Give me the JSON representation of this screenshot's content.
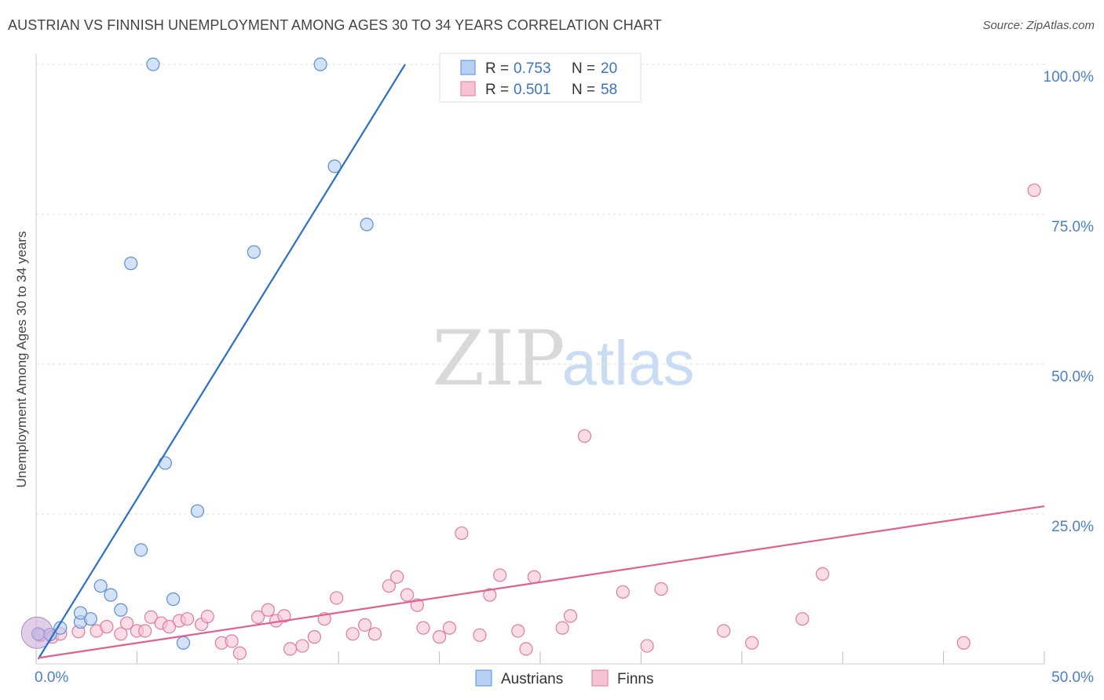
{
  "chart_data": {
    "type": "scatter",
    "title": "AUSTRIAN VS FINNISH UNEMPLOYMENT AMONG AGES 30 TO 34 YEARS CORRELATION CHART",
    "source": "Source: ZipAtlas.com",
    "xlabel": "",
    "ylabel": "Unemployment Among Ages 30 to 34 years",
    "xlim": [
      0,
      50
    ],
    "ylim": [
      0,
      100
    ],
    "x_tick_labels": [
      "0.0%",
      "50.0%"
    ],
    "y_tick_labels": [
      "100.0%",
      "75.0%",
      "50.0%",
      "25.0%"
    ],
    "y_tick_values": [
      100,
      75,
      50,
      25
    ],
    "grid": true,
    "watermark": "ZIPatlas",
    "legend_position": "top-center",
    "legend": [
      {
        "name": "Austrians",
        "r_label": "R = ",
        "r": "0.753",
        "n_label": "N = ",
        "n": "20",
        "color": "#5b8fd6",
        "fill": "#b7cff2"
      },
      {
        "name": "Finns",
        "r_label": "R = ",
        "r": "0.501",
        "n_label": "N = ",
        "n": "58",
        "color": "#e07aa0",
        "fill": "#f7c4d5"
      }
    ],
    "series": [
      {
        "name": "Austrians",
        "color": "#5b8fd6",
        "fill": "#b7cff2",
        "trend_color": "#2a6fc9",
        "trend": {
          "x0": 0.1,
          "y0": 0.8,
          "x1": 18.3,
          "y1": 100
        },
        "points": [
          [
            0.1,
            5.0
          ],
          [
            0.7,
            4.9
          ],
          [
            1.2,
            6.0
          ],
          [
            2.2,
            7.0
          ],
          [
            2.7,
            7.5
          ],
          [
            2.2,
            8.5
          ],
          [
            3.2,
            13.0
          ],
          [
            3.7,
            11.5
          ],
          [
            4.2,
            9.0
          ],
          [
            4.7,
            66.8
          ],
          [
            5.2,
            19.0
          ],
          [
            5.8,
            100.0
          ],
          [
            6.4,
            33.5
          ],
          [
            6.8,
            10.8
          ],
          [
            7.3,
            3.5
          ],
          [
            8.0,
            25.5
          ],
          [
            10.8,
            68.7
          ],
          [
            14.1,
            100.0
          ],
          [
            14.8,
            83.0
          ],
          [
            16.4,
            73.3
          ]
        ]
      },
      {
        "name": "Finns",
        "color": "#e07aa0",
        "fill": "#f7c4d5",
        "trend_color": "#e0608f",
        "trend": {
          "x0": 0.1,
          "y0": 1.0,
          "x1": 50.0,
          "y1": 26.3
        },
        "points": [
          [
            0.8,
            4.5
          ],
          [
            1.2,
            5.0
          ],
          [
            2.1,
            5.4
          ],
          [
            3.0,
            5.5
          ],
          [
            3.5,
            6.2
          ],
          [
            4.2,
            5.0
          ],
          [
            4.5,
            6.8
          ],
          [
            5.0,
            5.5
          ],
          [
            5.4,
            5.5
          ],
          [
            5.7,
            7.8
          ],
          [
            6.2,
            6.8
          ],
          [
            6.6,
            6.2
          ],
          [
            7.1,
            7.2
          ],
          [
            7.5,
            7.5
          ],
          [
            8.2,
            6.6
          ],
          [
            8.5,
            7.9
          ],
          [
            9.2,
            3.5
          ],
          [
            9.7,
            3.8
          ],
          [
            10.1,
            1.8
          ],
          [
            11.0,
            7.8
          ],
          [
            11.5,
            9.0
          ],
          [
            11.9,
            7.2
          ],
          [
            12.3,
            8.0
          ],
          [
            12.6,
            2.5
          ],
          [
            13.2,
            3.0
          ],
          [
            13.8,
            4.5
          ],
          [
            14.3,
            7.5
          ],
          [
            14.9,
            11.0
          ],
          [
            15.7,
            5.0
          ],
          [
            16.3,
            6.5
          ],
          [
            16.8,
            5.0
          ],
          [
            17.5,
            13.0
          ],
          [
            17.9,
            14.5
          ],
          [
            18.4,
            11.5
          ],
          [
            18.9,
            9.8
          ],
          [
            19.2,
            6.0
          ],
          [
            20.0,
            4.5
          ],
          [
            20.5,
            6.0
          ],
          [
            21.1,
            21.8
          ],
          [
            22.0,
            4.8
          ],
          [
            22.5,
            11.5
          ],
          [
            23.0,
            14.8
          ],
          [
            23.9,
            5.5
          ],
          [
            24.3,
            2.5
          ],
          [
            24.7,
            14.5
          ],
          [
            26.1,
            6.0
          ],
          [
            26.5,
            8.0
          ],
          [
            27.2,
            38.0
          ],
          [
            29.1,
            12.0
          ],
          [
            30.3,
            3.0
          ],
          [
            31.0,
            12.5
          ],
          [
            34.1,
            5.5
          ],
          [
            35.5,
            3.5
          ],
          [
            38.0,
            7.5
          ],
          [
            39.0,
            15.0
          ],
          [
            46.0,
            3.5
          ],
          [
            49.5,
            79.0
          ],
          [
            0.2,
            4.8
          ]
        ]
      }
    ]
  }
}
